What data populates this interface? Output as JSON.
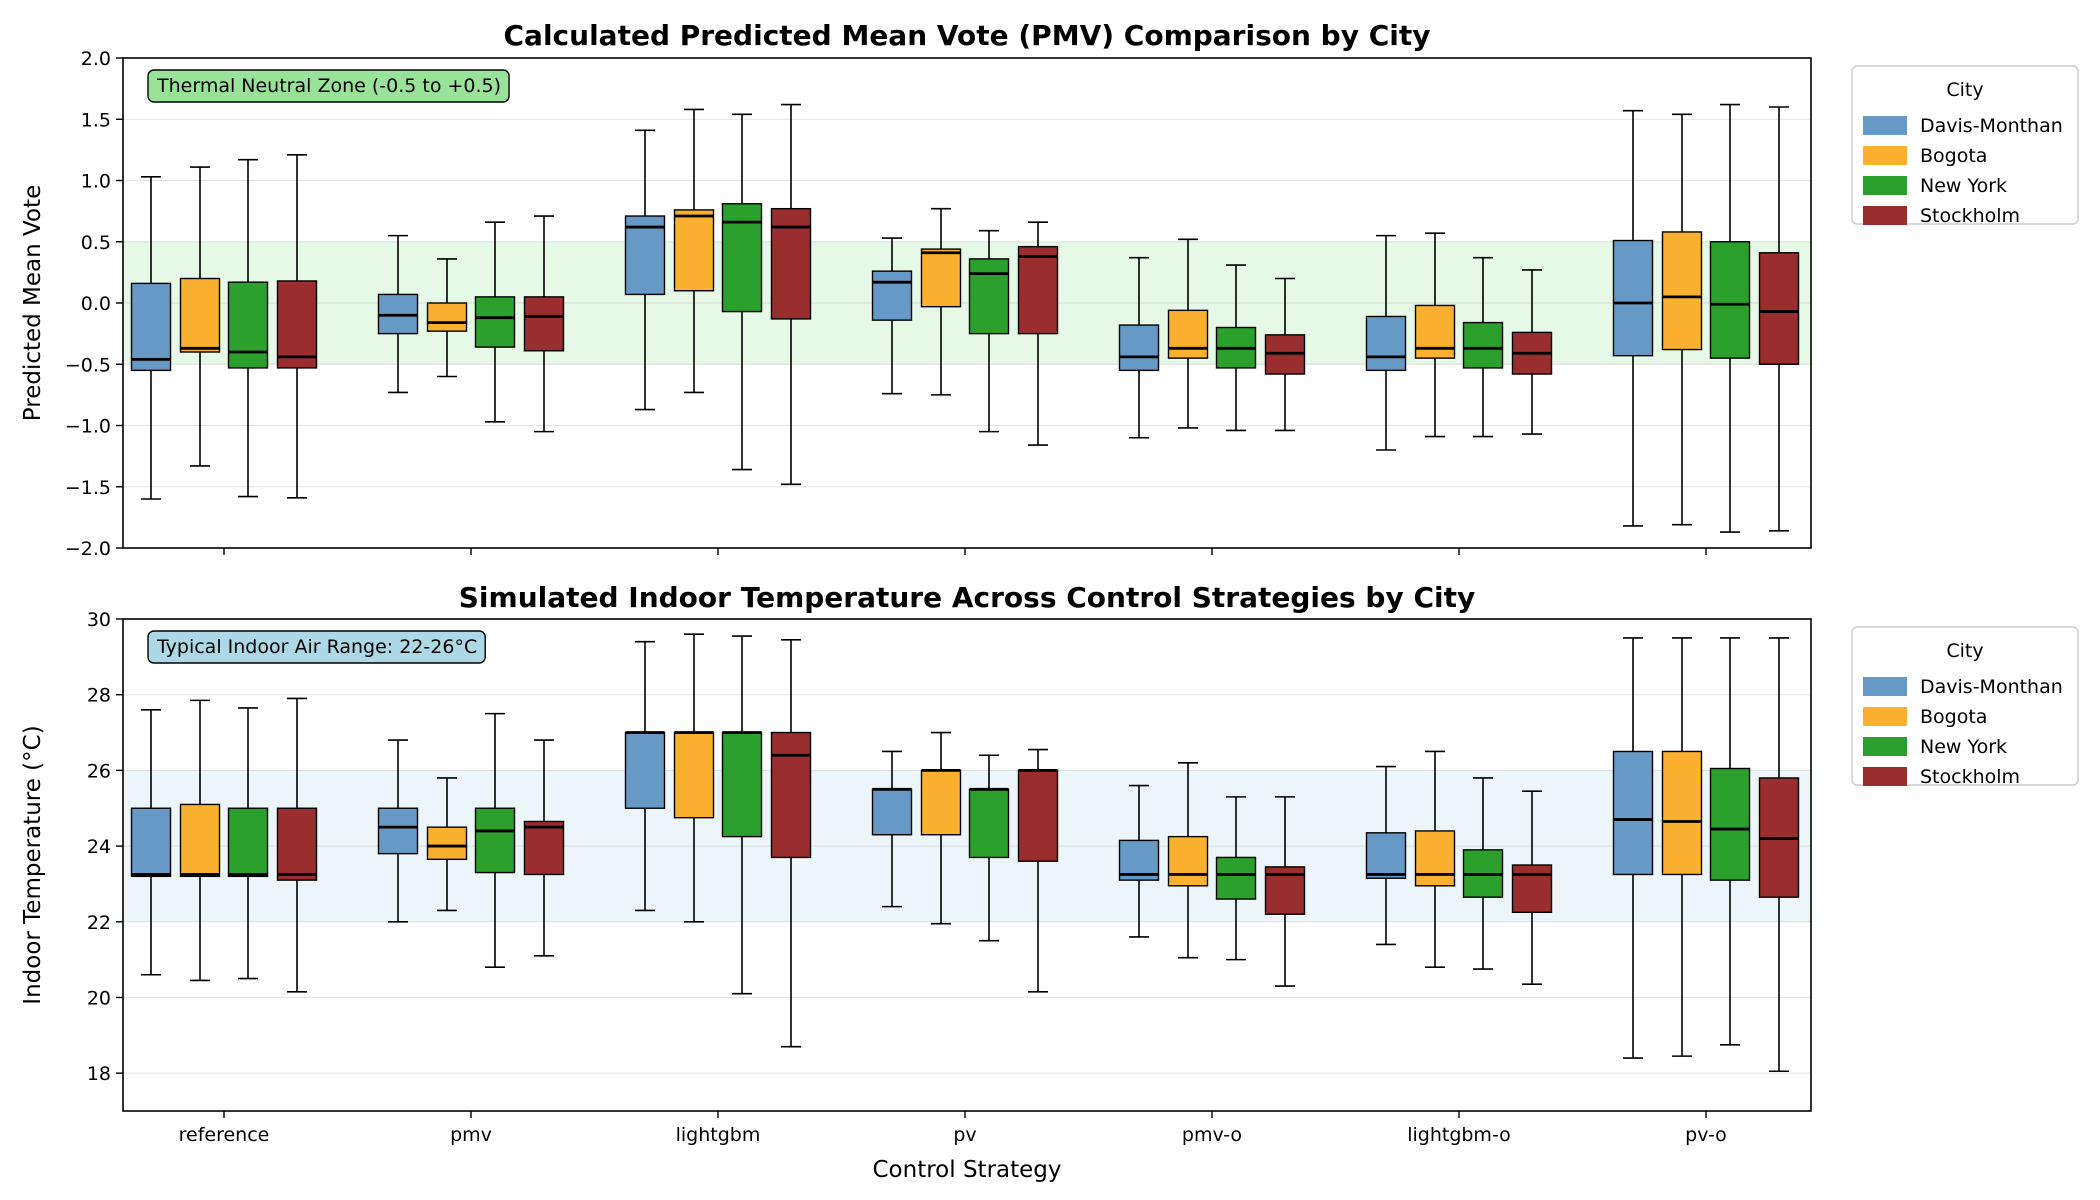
{
  "chart_data": [
    {
      "type": "box",
      "title": "Calculated Predicted Mean Vote (PMV) Comparison by City",
      "xlabel": "",
      "ylabel": "Predicted Mean Vote",
      "ylim": [
        -2.0,
        2.0
      ],
      "yticks": [
        -2.0,
        -1.5,
        -1.0,
        -0.5,
        0.0,
        0.5,
        1.0,
        1.5,
        2.0
      ],
      "ytick_labels": [
        "−2.0",
        "−1.5",
        "−1.0",
        "−0.5",
        "0.0",
        "0.5",
        "1.0",
        "1.5",
        "2.0"
      ],
      "show_x_tick_labels": false,
      "band": {
        "low": -0.5,
        "high": 0.5,
        "color": "#e6f8e6"
      },
      "annotation": {
        "text": "Thermal Neutral Zone (-0.5 to +0.5)",
        "bg": "#98e398"
      },
      "legend": {
        "title": "City",
        "position": "outside-right-top"
      },
      "categories": [
        "reference",
        "pmv",
        "lightgbm",
        "pv",
        "pmv-o",
        "lightgbm-o",
        "pv-o"
      ],
      "series": [
        {
          "name": "Davis-Monthan",
          "color": "#6699c6",
          "boxes": [
            {
              "min": -1.6,
              "q1": -0.55,
              "median": -0.46,
              "q3": 0.16,
              "max": 1.03
            },
            {
              "min": -0.73,
              "q1": -0.25,
              "median": -0.1,
              "q3": 0.07,
              "max": 0.55
            },
            {
              "min": -0.87,
              "q1": 0.07,
              "median": 0.62,
              "q3": 0.71,
              "max": 1.41
            },
            {
              "min": -0.74,
              "q1": -0.14,
              "median": 0.17,
              "q3": 0.26,
              "max": 0.53
            },
            {
              "min": -1.1,
              "q1": -0.55,
              "median": -0.44,
              "q3": -0.18,
              "max": 0.37
            },
            {
              "min": -1.2,
              "q1": -0.55,
              "median": -0.44,
              "q3": -0.11,
              "max": 0.55
            },
            {
              "min": -1.82,
              "q1": -0.43,
              "median": 0.0,
              "q3": 0.51,
              "max": 1.57
            }
          ]
        },
        {
          "name": "Bogota",
          "color": "#fbb02f",
          "boxes": [
            {
              "min": -1.33,
              "q1": -0.4,
              "median": -0.37,
              "q3": 0.2,
              "max": 1.11
            },
            {
              "min": -0.6,
              "q1": -0.23,
              "median": -0.16,
              "q3": 0.0,
              "max": 0.36
            },
            {
              "min": -0.73,
              "q1": 0.1,
              "median": 0.71,
              "q3": 0.76,
              "max": 1.58
            },
            {
              "min": -0.75,
              "q1": -0.03,
              "median": 0.41,
              "q3": 0.44,
              "max": 0.77
            },
            {
              "min": -1.02,
              "q1": -0.45,
              "median": -0.37,
              "q3": -0.06,
              "max": 0.52
            },
            {
              "min": -1.09,
              "q1": -0.45,
              "median": -0.37,
              "q3": -0.02,
              "max": 0.57
            },
            {
              "min": -1.81,
              "q1": -0.38,
              "median": 0.05,
              "q3": 0.58,
              "max": 1.54
            }
          ]
        },
        {
          "name": "New York",
          "color": "#2ca02c",
          "boxes": [
            {
              "min": -1.58,
              "q1": -0.53,
              "median": -0.4,
              "q3": 0.17,
              "max": 1.17
            },
            {
              "min": -0.97,
              "q1": -0.36,
              "median": -0.12,
              "q3": 0.05,
              "max": 0.66
            },
            {
              "min": -1.36,
              "q1": -0.07,
              "median": 0.66,
              "q3": 0.81,
              "max": 1.54
            },
            {
              "min": -1.05,
              "q1": -0.25,
              "median": 0.24,
              "q3": 0.36,
              "max": 0.59
            },
            {
              "min": -1.04,
              "q1": -0.53,
              "median": -0.37,
              "q3": -0.2,
              "max": 0.31
            },
            {
              "min": -1.09,
              "q1": -0.53,
              "median": -0.37,
              "q3": -0.16,
              "max": 0.37
            },
            {
              "min": -1.87,
              "q1": -0.45,
              "median": -0.01,
              "q3": 0.5,
              "max": 1.62
            }
          ]
        },
        {
          "name": "Stockholm",
          "color": "#9a2e2e",
          "boxes": [
            {
              "min": -1.59,
              "q1": -0.53,
              "median": -0.44,
              "q3": 0.18,
              "max": 1.21
            },
            {
              "min": -1.05,
              "q1": -0.39,
              "median": -0.11,
              "q3": 0.05,
              "max": 0.71
            },
            {
              "min": -1.48,
              "q1": -0.13,
              "median": 0.62,
              "q3": 0.77,
              "max": 1.62
            },
            {
              "min": -1.16,
              "q1": -0.25,
              "median": 0.38,
              "q3": 0.46,
              "max": 0.66
            },
            {
              "min": -1.04,
              "q1": -0.58,
              "median": -0.41,
              "q3": -0.26,
              "max": 0.2
            },
            {
              "min": -1.07,
              "q1": -0.58,
              "median": -0.41,
              "q3": -0.24,
              "max": 0.27
            },
            {
              "min": -1.86,
              "q1": -0.5,
              "median": -0.07,
              "q3": 0.41,
              "max": 1.6
            }
          ]
        }
      ]
    },
    {
      "type": "box",
      "title": "Simulated Indoor Temperature Across Control Strategies by City",
      "xlabel": "Control Strategy",
      "ylabel": "Indoor Temperature (°C)",
      "ylim": [
        17.0,
        30.0
      ],
      "yticks": [
        18,
        20,
        22,
        24,
        26,
        28,
        30
      ],
      "ytick_labels": [
        "18",
        "20",
        "22",
        "24",
        "26",
        "28",
        "30"
      ],
      "show_x_tick_labels": true,
      "band": {
        "low": 22.0,
        "high": 26.0,
        "color": "#ecf6fa"
      },
      "annotation": {
        "text": "Typical Indoor Air Range: 22-26°C",
        "bg": "#add8e6"
      },
      "legend": {
        "title": "City",
        "position": "outside-right-top"
      },
      "categories": [
        "reference",
        "pmv",
        "lightgbm",
        "pv",
        "pmv-o",
        "lightgbm-o",
        "pv-o"
      ],
      "series": [
        {
          "name": "Davis-Monthan",
          "color": "#6699c6",
          "boxes": [
            {
              "min": 20.6,
              "q1": 23.2,
              "median": 23.25,
              "q3": 25.0,
              "max": 27.6
            },
            {
              "min": 22.0,
              "q1": 23.8,
              "median": 24.5,
              "q3": 25.0,
              "max": 26.8
            },
            {
              "min": 22.3,
              "q1": 25.0,
              "median": 27.0,
              "q3": 27.0,
              "max": 29.4
            },
            {
              "min": 22.4,
              "q1": 24.3,
              "median": 25.5,
              "q3": 25.5,
              "max": 26.5
            },
            {
              "min": 21.6,
              "q1": 23.1,
              "median": 23.25,
              "q3": 24.15,
              "max": 25.6
            },
            {
              "min": 21.4,
              "q1": 23.15,
              "median": 23.25,
              "q3": 24.35,
              "max": 26.1
            },
            {
              "min": 18.4,
              "q1": 23.25,
              "median": 24.7,
              "q3": 26.5,
              "max": 29.5
            }
          ]
        },
        {
          "name": "Bogota",
          "color": "#fbb02f",
          "boxes": [
            {
              "min": 20.45,
              "q1": 23.2,
              "median": 23.25,
              "q3": 25.1,
              "max": 27.85
            },
            {
              "min": 22.3,
              "q1": 23.65,
              "median": 24.0,
              "q3": 24.5,
              "max": 25.8
            },
            {
              "min": 22.0,
              "q1": 24.75,
              "median": 27.0,
              "q3": 27.0,
              "max": 29.6
            },
            {
              "min": 21.95,
              "q1": 24.3,
              "median": 26.0,
              "q3": 26.0,
              "max": 27.0
            },
            {
              "min": 21.05,
              "q1": 22.95,
              "median": 23.25,
              "q3": 24.25,
              "max": 26.2
            },
            {
              "min": 20.8,
              "q1": 22.95,
              "median": 23.25,
              "q3": 24.4,
              "max": 26.5
            },
            {
              "min": 18.45,
              "q1": 23.25,
              "median": 24.65,
              "q3": 26.5,
              "max": 29.5
            }
          ]
        },
        {
          "name": "New York",
          "color": "#2ca02c",
          "boxes": [
            {
              "min": 20.5,
              "q1": 23.2,
              "median": 23.25,
              "q3": 25.0,
              "max": 27.65
            },
            {
              "min": 20.8,
              "q1": 23.3,
              "median": 24.4,
              "q3": 25.0,
              "max": 27.5
            },
            {
              "min": 20.1,
              "q1": 24.25,
              "median": 27.0,
              "q3": 27.0,
              "max": 29.55
            },
            {
              "min": 21.5,
              "q1": 23.7,
              "median": 25.5,
              "q3": 25.5,
              "max": 26.4
            },
            {
              "min": 21.0,
              "q1": 22.6,
              "median": 23.25,
              "q3": 23.7,
              "max": 25.3
            },
            {
              "min": 20.75,
              "q1": 22.65,
              "median": 23.25,
              "q3": 23.9,
              "max": 25.8
            },
            {
              "min": 18.75,
              "q1": 23.1,
              "median": 24.45,
              "q3": 26.05,
              "max": 29.5
            }
          ]
        },
        {
          "name": "Stockholm",
          "color": "#9a2e2e",
          "boxes": [
            {
              "min": 20.15,
              "q1": 23.1,
              "median": 23.25,
              "q3": 25.0,
              "max": 27.9
            },
            {
              "min": 21.1,
              "q1": 23.25,
              "median": 24.5,
              "q3": 24.65,
              "max": 26.8
            },
            {
              "min": 18.7,
              "q1": 23.7,
              "median": 26.4,
              "q3": 27.0,
              "max": 29.45
            },
            {
              "min": 20.15,
              "q1": 23.6,
              "median": 26.0,
              "q3": 26.0,
              "max": 26.55
            },
            {
              "min": 20.3,
              "q1": 22.2,
              "median": 23.25,
              "q3": 23.45,
              "max": 25.3
            },
            {
              "min": 20.35,
              "q1": 22.25,
              "median": 23.25,
              "q3": 23.5,
              "max": 25.45
            },
            {
              "min": 18.05,
              "q1": 22.65,
              "median": 24.2,
              "q3": 25.8,
              "max": 29.5
            }
          ]
        }
      ]
    }
  ]
}
